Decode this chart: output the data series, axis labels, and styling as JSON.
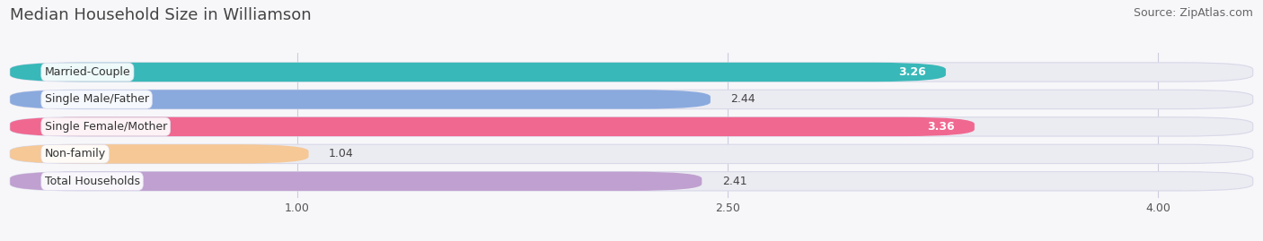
{
  "title": "Median Household Size in Williamson",
  "source": "Source: ZipAtlas.com",
  "categories": [
    "Married-Couple",
    "Single Male/Father",
    "Single Female/Mother",
    "Non-family",
    "Total Households"
  ],
  "values": [
    3.26,
    2.44,
    3.36,
    1.04,
    2.41
  ],
  "bar_colors": [
    "#38b8b8",
    "#8aaade",
    "#f06890",
    "#f5c896",
    "#c0a0d0"
  ],
  "label_bg_colors": [
    "#e8f8f8",
    "#e8eef8",
    "#fce8f0",
    "#fef5e8",
    "#f0e8f8"
  ],
  "value_inside": [
    true,
    false,
    true,
    false,
    false
  ],
  "xlim": [
    0,
    4.33
  ],
  "xmin": 0,
  "xticks": [
    1.0,
    2.5,
    4.0
  ],
  "background_color": "#f7f7fa",
  "bar_bg_color": "#ebebf2",
  "bar_bg_edge_color": "#d8d8e8",
  "title_fontsize": 13,
  "source_fontsize": 9,
  "label_fontsize": 9,
  "value_fontsize": 9
}
